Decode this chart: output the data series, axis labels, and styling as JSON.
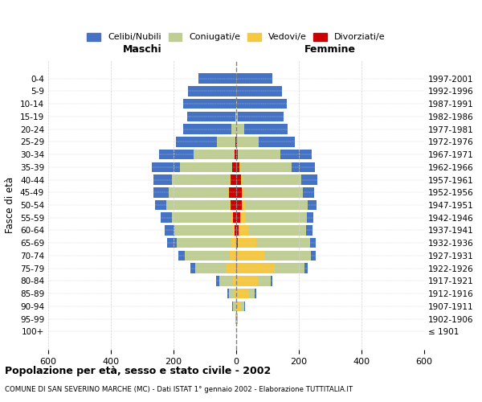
{
  "age_groups": [
    "100+",
    "95-99",
    "90-94",
    "85-89",
    "80-84",
    "75-79",
    "70-74",
    "65-69",
    "60-64",
    "55-59",
    "50-54",
    "45-49",
    "40-44",
    "35-39",
    "30-34",
    "25-29",
    "20-24",
    "15-19",
    "10-14",
    "5-9",
    "0-4"
  ],
  "birth_years": [
    "≤ 1901",
    "1902-1906",
    "1907-1911",
    "1912-1916",
    "1917-1921",
    "1922-1926",
    "1927-1931",
    "1932-1936",
    "1937-1941",
    "1942-1946",
    "1947-1951",
    "1952-1956",
    "1957-1961",
    "1962-1966",
    "1967-1971",
    "1972-1976",
    "1977-1981",
    "1982-1986",
    "1987-1991",
    "1992-1996",
    "1997-2001"
  ],
  "males": {
    "celibi": [
      0,
      1,
      2,
      5,
      8,
      15,
      20,
      30,
      30,
      35,
      38,
      50,
      60,
      90,
      110,
      130,
      155,
      155,
      170,
      155,
      120
    ],
    "coniugati": [
      0,
      2,
      8,
      18,
      45,
      100,
      145,
      175,
      185,
      190,
      200,
      190,
      185,
      165,
      130,
      60,
      15,
      2,
      0,
      0,
      0
    ],
    "vedovi": [
      0,
      0,
      2,
      5,
      10,
      30,
      20,
      15,
      8,
      5,
      4,
      3,
      2,
      2,
      1,
      0,
      0,
      0,
      0,
      0,
      0
    ],
    "divorziati": [
      0,
      0,
      0,
      0,
      0,
      0,
      0,
      0,
      5,
      10,
      18,
      22,
      18,
      12,
      5,
      2,
      0,
      0,
      0,
      0,
      0
    ]
  },
  "females": {
    "nubili": [
      0,
      1,
      2,
      3,
      5,
      12,
      15,
      20,
      20,
      22,
      28,
      35,
      50,
      75,
      100,
      115,
      140,
      145,
      160,
      145,
      115
    ],
    "coniugate": [
      0,
      2,
      10,
      20,
      40,
      95,
      145,
      170,
      185,
      195,
      200,
      190,
      190,
      165,
      135,
      70,
      25,
      5,
      2,
      0,
      0
    ],
    "vedove": [
      0,
      2,
      15,
      40,
      70,
      120,
      90,
      60,
      30,
      18,
      10,
      5,
      3,
      2,
      1,
      0,
      0,
      0,
      0,
      0,
      0
    ],
    "divorziate": [
      0,
      0,
      0,
      0,
      0,
      2,
      3,
      5,
      8,
      12,
      18,
      18,
      15,
      10,
      5,
      2,
      0,
      0,
      0,
      0,
      0
    ]
  },
  "colors": {
    "celibi_nubili": "#4472C4",
    "coniugati": "#BFCE93",
    "vedovi": "#F5C842",
    "divorziati": "#CC0000"
  },
  "xlim": 600,
  "title": "Popolazione per età, sesso e stato civile - 2002",
  "subtitle": "COMUNE DI SAN SEVERINO MARCHE (MC) - Dati ISTAT 1° gennaio 2002 - Elaborazione TUTTITALIA.IT",
  "ylabel": "Fasce di età",
  "xlabel_maschi": "Maschi",
  "xlabel_femmine": "Femmine"
}
